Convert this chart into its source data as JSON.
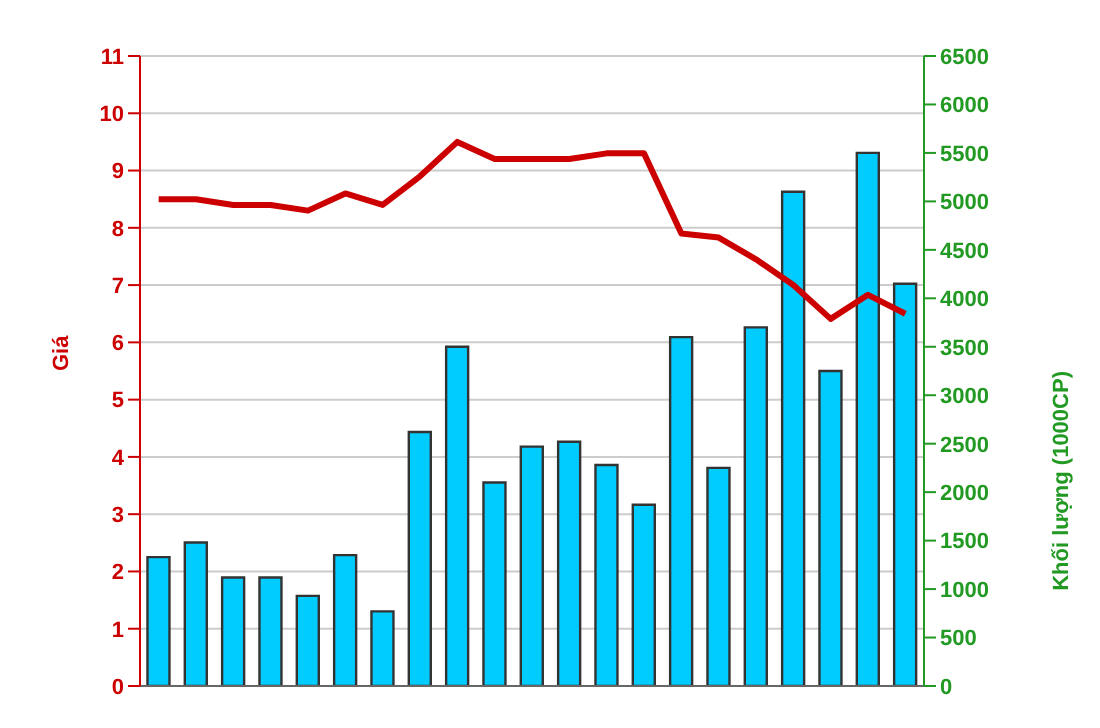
{
  "chart_data": {
    "type": "bar",
    "ylabel": "Giá",
    "y2label": "Khối lượng (1000CP)",
    "categories": [
      null,
      null,
      null,
      null,
      null,
      null,
      null,
      null,
      null,
      null,
      null,
      null,
      null,
      null,
      null,
      null,
      null,
      null,
      null,
      null,
      null
    ],
    "series": [
      {
        "axis": "y2",
        "color": "#00ccff",
        "values": [
          1330,
          1480,
          1120,
          1120,
          930,
          1350,
          770,
          2620,
          3500,
          2100,
          2470,
          2520,
          2280,
          1870,
          3600,
          2250,
          3700,
          5100,
          3250,
          5500,
          4150
        ]
      },
      {
        "type": "line",
        "axis": "y",
        "color": "#cc0000",
        "values": [
          8.5,
          8.5,
          8.4,
          8.4,
          8.3,
          8.6,
          8.4,
          8.9,
          9.5,
          9.2,
          9.2,
          9.2,
          9.3,
          9.3,
          7.9,
          7.83,
          7.45,
          7.0,
          6.41,
          6.83,
          6.5
        ]
      }
    ],
    "ylim": [
      0,
      11
    ],
    "yticks": [
      0,
      1,
      2,
      3,
      4,
      5,
      6,
      7,
      8,
      9,
      10,
      11
    ],
    "y2lim": [
      0,
      6500
    ],
    "y2ticks": [
      0,
      500,
      1000,
      1500,
      2000,
      2500,
      3000,
      3500,
      4000,
      4500,
      5000,
      5500,
      6000,
      6500
    ],
    "grid": "y",
    "legend": false,
    "marker": "none"
  }
}
